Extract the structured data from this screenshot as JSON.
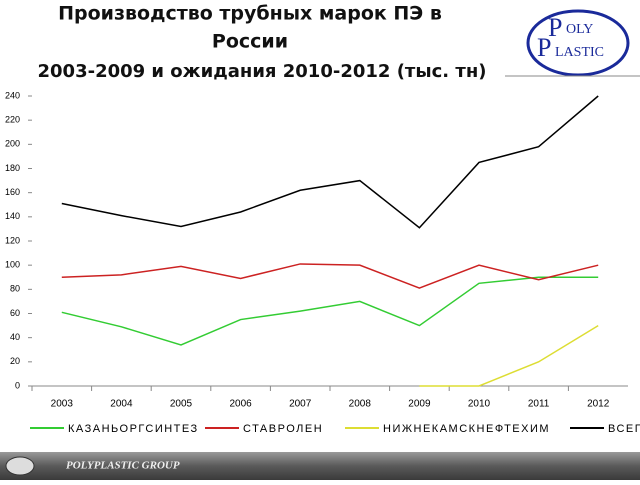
{
  "chart_data": {
    "type": "line",
    "title": [
      "Производство трубных марок ПЭ в",
      "России"
    ],
    "subtitle": "2003-2009 и ожидания 2010-2012 (тыс. тн)",
    "logo": [
      "OLY",
      "LASTIC"
    ],
    "footer": "POLYPLASTIC GROUP",
    "categories": [
      "2003",
      "2004",
      "2005",
      "2006",
      "2007",
      "2008",
      "2009",
      "2010",
      "2011",
      "2012"
    ],
    "series": [
      {
        "name": "КАЗАНЬОРГСИНТЕЗ",
        "color": "#33cc33",
        "values": [
          61,
          49,
          34,
          55,
          62,
          70,
          50,
          85,
          90,
          90
        ]
      },
      {
        "name": "СТАВРОЛЕН",
        "color": "#cc2222",
        "values": [
          90,
          92,
          99,
          89,
          101,
          100,
          81,
          100,
          88,
          100
        ]
      },
      {
        "name": "НИЖНЕКАМСКНЕФТЕХИМ",
        "color": "#dddd33",
        "values": [
          null,
          null,
          null,
          null,
          null,
          null,
          0,
          0,
          20,
          50
        ]
      },
      {
        "name": "ВСЕГО",
        "color": "#000000",
        "values": [
          151,
          141,
          132,
          144,
          162,
          170,
          131,
          185,
          198,
          240
        ]
      }
    ],
    "ylim": [
      0,
      240
    ],
    "yticks": [
      0,
      20,
      40,
      60,
      80,
      100,
      120,
      140,
      160,
      180,
      200,
      220,
      240
    ],
    "legend": "bottom"
  }
}
